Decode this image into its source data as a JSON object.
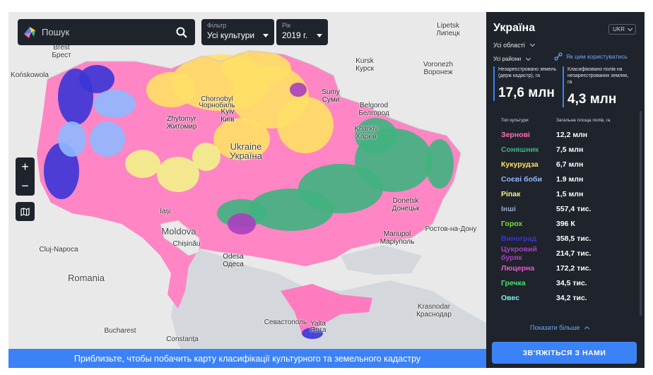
{
  "search": {
    "placeholder": "Пошук"
  },
  "filters": {
    "crop": {
      "label": "Фільтр",
      "value": "Усі культури"
    },
    "year": {
      "label": "Рік",
      "value": "2019 г."
    }
  },
  "zoom": {
    "in": "+",
    "out": "−"
  },
  "banner": {
    "text": "Приблизьте, чтобы побачить карту класифікації культурного та земельного кадастру"
  },
  "cities": [
    {
      "id": "brest",
      "lines": [
        "Brest",
        "Брест"
      ]
    },
    {
      "id": "zhytomyr",
      "lines": [
        "Zhytomyr",
        "Житомир"
      ]
    },
    {
      "id": "kyiv",
      "lines": [
        "Kyiv",
        "Київ"
      ]
    },
    {
      "id": "ukraine",
      "lines": [
        "Ukraine",
        "Україна"
      ]
    },
    {
      "id": "sumy",
      "lines": [
        "Sumy",
        "Суми"
      ]
    },
    {
      "id": "kursk",
      "lines": [
        "Kursk",
        "Курск"
      ]
    },
    {
      "id": "belgorod",
      "lines": [
        "Belgorod",
        "Белгород"
      ]
    },
    {
      "id": "kharkiv",
      "lines": [
        "Kharkiv",
        "Харків"
      ]
    },
    {
      "id": "voronezh",
      "lines": [
        "Voronezh",
        "Воронеж"
      ]
    },
    {
      "id": "lipetsk",
      "lines": [
        "Lipetsk",
        "Липецк"
      ]
    },
    {
      "id": "donetsk",
      "lines": [
        "Donetsk",
        "Донецьк"
      ]
    },
    {
      "id": "mariupol",
      "lines": [
        "Mariupol",
        "Маріуполь"
      ]
    },
    {
      "id": "rostov",
      "lines": [
        "Ростов-на-Дону"
      ]
    },
    {
      "id": "moldova",
      "lines": [
        "Moldova"
      ]
    },
    {
      "id": "chisinau",
      "lines": [
        "Chișinău"
      ]
    },
    {
      "id": "odesa",
      "lines": [
        "Odesa",
        "Одеса"
      ]
    },
    {
      "id": "cluj",
      "lines": [
        "Cluj-Napoca"
      ]
    },
    {
      "id": "romania",
      "lines": [
        "Romania"
      ]
    },
    {
      "id": "bucharest",
      "lines": [
        "Bucharest"
      ]
    },
    {
      "id": "constanta",
      "lines": [
        "Constanța"
      ]
    },
    {
      "id": "krasnodar",
      "lines": [
        "Krasnodar",
        "Краснодар"
      ]
    },
    {
      "id": "yalta",
      "lines": [
        "Yalta",
        "Ялта"
      ]
    },
    {
      "id": "sevastopol",
      "lines": [
        "Севастополь"
      ]
    },
    {
      "id": "iasi",
      "lines": [
        "Iași"
      ]
    },
    {
      "id": "chernobyl",
      "lines": [
        "Chornobyl",
        "Чорнобиль"
      ]
    },
    {
      "id": "konskowola",
      "lines": [
        "Końskowola"
      ]
    }
  ],
  "panel": {
    "title": "Україна",
    "language": "UKR",
    "region_select": "Усі області",
    "district_select": "Усі райони",
    "howto_link": "Як цим користуватись",
    "stats": [
      {
        "label": "Незареєстровано земель (держ кадастр), га",
        "value": "17,6 млн"
      },
      {
        "label": "Класифіковано полів на незареєстрованих землях, га",
        "value": "4,3 млн"
      }
    ],
    "table": {
      "header_crop": "Топ культури",
      "header_area": "Загальна площа полів, га",
      "rows": [
        {
          "name": "Зернові",
          "value": "12,2 млн",
          "color": "#ff6fb5"
        },
        {
          "name": "Соняшник",
          "value": "7,5 млн",
          "color": "#3fb37f"
        },
        {
          "name": "Кукурудза",
          "value": "6,7 млн",
          "color": "#ffe066"
        },
        {
          "name": "Соєві боби",
          "value": "1.9 млн",
          "color": "#8fb8ff"
        },
        {
          "name": "Ріпак",
          "value": "1,5 млн",
          "color": "#f2f28a"
        },
        {
          "name": "Інші",
          "value": "557,4 тис.",
          "color": "#9aa6c8"
        },
        {
          "name": "Горох",
          "value": "396 К",
          "color": "#7ddc3c"
        },
        {
          "name": "Виноград",
          "value": "358,5 тис.",
          "color": "#3a35d6"
        },
        {
          "name": "Цукровий буряк",
          "value": "214,7 тис.",
          "color": "#a83fc0"
        },
        {
          "name": "Люцерна",
          "value": "172,2 тис.",
          "color": "#e85ccc"
        },
        {
          "name": "Гречка",
          "value": "34,5 тис.",
          "color": "#4de07a"
        },
        {
          "name": "Овес",
          "value": "34,2 тис.",
          "color": "#88e8f0"
        }
      ]
    },
    "show_more": "Показати більше",
    "contact_button": "ЗВ'ЯЖІТЬСЯ З НАМИ"
  }
}
